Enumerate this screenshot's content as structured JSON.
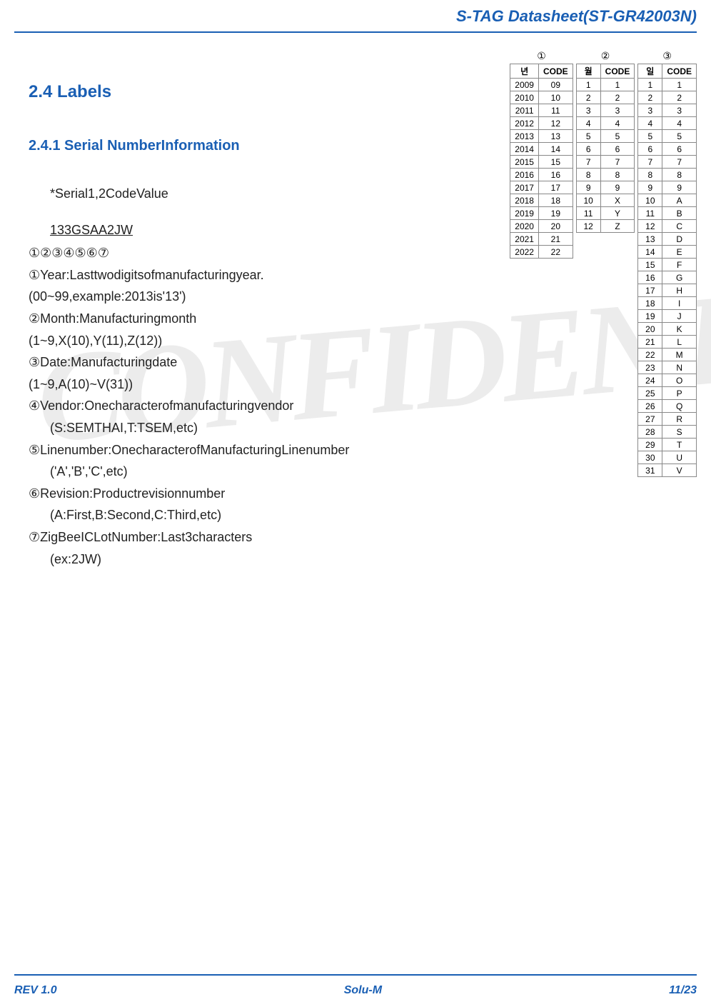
{
  "header": {
    "title": "S-TAG Datasheet(ST-GR42003N)"
  },
  "watermark": "CONFIDENTIAL",
  "sections": {
    "h24": "2.4  Labels",
    "h241": "2.4.1  Serial NumberInformation",
    "serial_label": "*Serial1,2CodeValue",
    "serial_code": "133GSAA2JW",
    "circled_row": "①②③④⑤⑥⑦",
    "items": {
      "i1a": "①Year:Lasttwodigitsofmanufacturingyear.",
      "i1b": "(00~99,example:2013is'13')",
      "i2a": "②Month:Manufacturingmonth",
      "i2b": "(1~9,X(10),Y(11),Z(12))",
      "i3a": "③Date:Manufacturingdate",
      "i3b": "(1~9,A(10)~V(31))",
      "i4a": "④Vendor:Onecharacterofmanufacturingvendor",
      "i4b": "(S:SEMTHAI,T:TSEM,etc)",
      "i5a": "⑤Linenumber:OnecharacterofManufacturingLinenumber",
      "i5b": "('A','B','C',etc)",
      "i6a": "⑥Revision:Productrevisionnumber",
      "i6b": "(A:First,B:Second,C:Third,etc)",
      "i7a": "⑦ZigBeeICLotNumber:Last3characters",
      "i7b": "(ex:2JW)"
    }
  },
  "tables": {
    "year": {
      "circled": "①",
      "header": [
        "년",
        "CODE"
      ],
      "rows": [
        [
          "2009",
          "09"
        ],
        [
          "2010",
          "10"
        ],
        [
          "2011",
          "11"
        ],
        [
          "2012",
          "12"
        ],
        [
          "2013",
          "13"
        ],
        [
          "2014",
          "14"
        ],
        [
          "2015",
          "15"
        ],
        [
          "2016",
          "16"
        ],
        [
          "2017",
          "17"
        ],
        [
          "2018",
          "18"
        ],
        [
          "2019",
          "19"
        ],
        [
          "2020",
          "20"
        ],
        [
          "2021",
          "21"
        ],
        [
          "2022",
          "22"
        ]
      ]
    },
    "month": {
      "circled": "②",
      "header": [
        "월",
        "CODE"
      ],
      "rows": [
        [
          "1",
          "1"
        ],
        [
          "2",
          "2"
        ],
        [
          "3",
          "3"
        ],
        [
          "4",
          "4"
        ],
        [
          "5",
          "5"
        ],
        [
          "6",
          "6"
        ],
        [
          "7",
          "7"
        ],
        [
          "8",
          "8"
        ],
        [
          "9",
          "9"
        ],
        [
          "10",
          "X"
        ],
        [
          "11",
          "Y"
        ],
        [
          "12",
          "Z"
        ]
      ]
    },
    "day": {
      "circled": "③",
      "header": [
        "일",
        "CODE"
      ],
      "rows": [
        [
          "1",
          "1"
        ],
        [
          "2",
          "2"
        ],
        [
          "3",
          "3"
        ],
        [
          "4",
          "4"
        ],
        [
          "5",
          "5"
        ],
        [
          "6",
          "6"
        ],
        [
          "7",
          "7"
        ],
        [
          "8",
          "8"
        ],
        [
          "9",
          "9"
        ],
        [
          "10",
          "A"
        ],
        [
          "11",
          "B"
        ],
        [
          "12",
          "C"
        ],
        [
          "13",
          "D"
        ],
        [
          "14",
          "E"
        ],
        [
          "15",
          "F"
        ],
        [
          "16",
          "G"
        ],
        [
          "17",
          "H"
        ],
        [
          "18",
          "I"
        ],
        [
          "19",
          "J"
        ],
        [
          "20",
          "K"
        ],
        [
          "21",
          "L"
        ],
        [
          "22",
          "M"
        ],
        [
          "23",
          "N"
        ],
        [
          "24",
          "O"
        ],
        [
          "25",
          "P"
        ],
        [
          "26",
          "Q"
        ],
        [
          "27",
          "R"
        ],
        [
          "28",
          "S"
        ],
        [
          "29",
          "T"
        ],
        [
          "30",
          "U"
        ],
        [
          "31",
          "V"
        ]
      ]
    }
  },
  "footer": {
    "rev": "REV 1.0",
    "company": "Solu-M",
    "page": "11/23"
  }
}
